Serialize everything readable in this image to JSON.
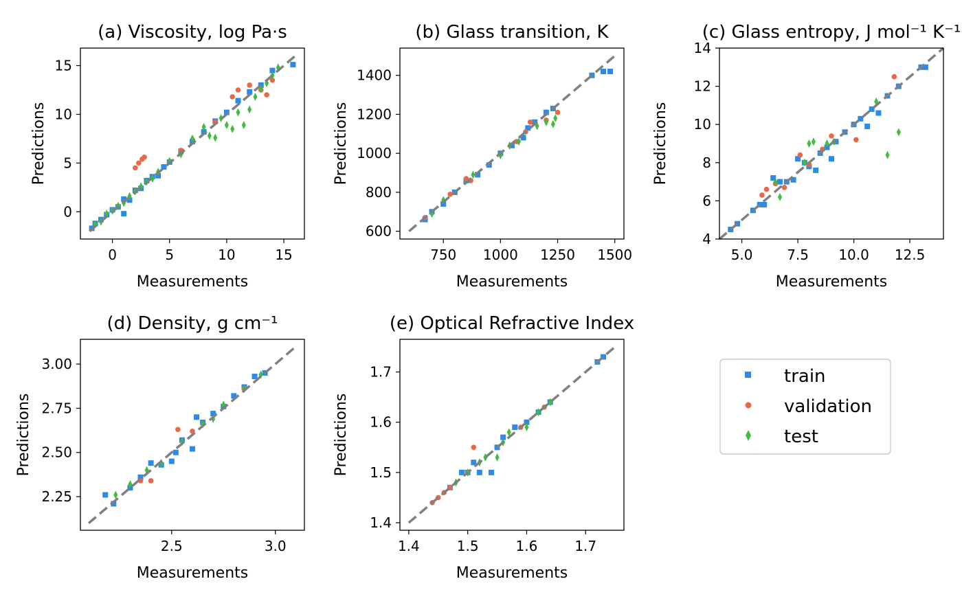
{
  "chart_data": [
    {
      "type": "scatter",
      "title": "(a) Viscosity, log Pa·s",
      "xlabel": "Measurements",
      "ylabel": "Predictions",
      "xlim": [
        -2.8,
        16.8
      ],
      "ylim": [
        -2.8,
        16.8
      ],
      "xticks": [
        0,
        5,
        10,
        15
      ],
      "yticks": [
        0,
        5,
        10,
        15
      ],
      "ytick_labels": [
        "0",
        "5",
        "10",
        "15"
      ],
      "diagonal": [
        -2,
        16
      ],
      "series": [
        {
          "name": "train",
          "points": [
            [
              -1.8,
              -1.7
            ],
            [
              -1.5,
              -1.2
            ],
            [
              -1,
              -0.8
            ],
            [
              -0.5,
              -0.3
            ],
            [
              0,
              0.2
            ],
            [
              0.5,
              0.5
            ],
            [
              1,
              1.3
            ],
            [
              1,
              -0.2
            ],
            [
              1.5,
              1.2
            ],
            [
              2,
              2.2
            ],
            [
              2.5,
              2.4
            ],
            [
              3,
              3.2
            ],
            [
              3.5,
              3.6
            ],
            [
              4,
              3.7
            ],
            [
              4.5,
              4.6
            ],
            [
              5,
              5.1
            ],
            [
              6,
              6.2
            ],
            [
              7,
              7.2
            ],
            [
              8,
              8.2
            ],
            [
              9,
              9.3
            ],
            [
              10,
              10.2
            ],
            [
              11,
              11.4
            ],
            [
              12,
              12.3
            ],
            [
              13,
              13
            ],
            [
              14,
              14.5
            ],
            [
              15.8,
              15.1
            ]
          ]
        },
        {
          "name": "validation",
          "points": [
            [
              2,
              4.5
            ],
            [
              2.3,
              5
            ],
            [
              2.6,
              5.4
            ],
            [
              2.8,
              5.6
            ],
            [
              6,
              6.3
            ],
            [
              9,
              9.2
            ],
            [
              10.5,
              11.8
            ],
            [
              11,
              12.5
            ],
            [
              12,
              13
            ],
            [
              13,
              12.5
            ],
            [
              13.5,
              12
            ],
            [
              14,
              13.5
            ]
          ]
        },
        {
          "name": "test",
          "points": [
            [
              -1.5,
              -1.3
            ],
            [
              -1,
              -1
            ],
            [
              -0.5,
              -0.2
            ],
            [
              0,
              0.1
            ],
            [
              0.5,
              0.6
            ],
            [
              1,
              0.9
            ],
            [
              1.5,
              1.6
            ],
            [
              2,
              2.1
            ],
            [
              2.5,
              2.6
            ],
            [
              3,
              3.1
            ],
            [
              3.5,
              3.4
            ],
            [
              4,
              4.1
            ],
            [
              5,
              5.2
            ],
            [
              6,
              5.9
            ],
            [
              7,
              7.5
            ],
            [
              8,
              8.7
            ],
            [
              8.5,
              7.8
            ],
            [
              9,
              7.6
            ],
            [
              9.5,
              9.6
            ],
            [
              10,
              8.9
            ],
            [
              10.5,
              8.5
            ],
            [
              11,
              10.2
            ],
            [
              11.5,
              8.9
            ],
            [
              12,
              10.5
            ],
            [
              12.5,
              11.8
            ],
            [
              13,
              12.6
            ],
            [
              13.5,
              13.2
            ],
            [
              14,
              14
            ],
            [
              14.5,
              14.8
            ]
          ]
        }
      ]
    },
    {
      "type": "scatter",
      "title": "(b) Glass transition, K",
      "xlabel": "Measurements",
      "ylabel": "Predictions",
      "xlim": [
        560,
        1540
      ],
      "ylim": [
        560,
        1540
      ],
      "xticks": [
        750,
        1000,
        1250,
        1500
      ],
      "yticks": [
        600,
        800,
        1000,
        1200,
        1400
      ],
      "ytick_labels": [
        "600",
        "800",
        "1000",
        "1200",
        "1400"
      ],
      "diagonal": [
        600,
        1500
      ],
      "series": [
        {
          "name": "train",
          "points": [
            [
              670,
              660
            ],
            [
              700,
              700
            ],
            [
              750,
              740
            ],
            [
              800,
              800
            ],
            [
              850,
              860
            ],
            [
              900,
              890
            ],
            [
              950,
              940
            ],
            [
              1000,
              1000
            ],
            [
              1050,
              1040
            ],
            [
              1100,
              1080
            ],
            [
              1120,
              1130
            ],
            [
              1150,
              1160
            ],
            [
              1200,
              1210
            ],
            [
              1230,
              1230
            ],
            [
              1400,
              1400
            ],
            [
              1450,
              1420
            ],
            [
              1480,
              1420
            ]
          ]
        },
        {
          "name": "validation",
          "points": [
            [
              670,
              670
            ],
            [
              780,
              790
            ],
            [
              850,
              870
            ],
            [
              870,
              860
            ],
            [
              1070,
              1060
            ],
            [
              1110,
              1110
            ],
            [
              1130,
              1160
            ],
            [
              1200,
              1170
            ],
            [
              1250,
              1210
            ]
          ]
        },
        {
          "name": "test",
          "points": [
            [
              700,
              690
            ],
            [
              750,
              760
            ],
            [
              880,
              890
            ],
            [
              1000,
              990
            ],
            [
              1040,
              1040
            ],
            [
              1080,
              1060
            ],
            [
              1160,
              1140
            ],
            [
              1200,
              1160
            ],
            [
              1230,
              1150
            ],
            [
              1240,
              1180
            ]
          ]
        }
      ]
    },
    {
      "type": "scatter",
      "title": "(c) Glass entropy, J mol⁻¹ K⁻¹",
      "xlabel": "Measurements",
      "ylabel": "Predictions",
      "xlim": [
        4,
        14
      ],
      "ylim": [
        4,
        14
      ],
      "xticks": [
        5,
        7.5,
        10,
        12.5
      ],
      "xtick_labels": [
        "5.0",
        "7.5",
        "10.0",
        "12.5"
      ],
      "yticks": [
        4,
        6,
        8,
        10,
        12,
        14
      ],
      "ytick_labels": [
        "4",
        "6",
        "8",
        "10",
        "12",
        "14"
      ],
      "diagonal": [
        4,
        14
      ],
      "series": [
        {
          "name": "train",
          "points": [
            [
              4.5,
              4.5
            ],
            [
              4.8,
              4.8
            ],
            [
              5.5,
              5.5
            ],
            [
              5.8,
              5.8
            ],
            [
              6,
              5.8
            ],
            [
              6.4,
              7.2
            ],
            [
              6.7,
              7
            ],
            [
              7,
              7
            ],
            [
              7.3,
              7.1
            ],
            [
              7.5,
              8.2
            ],
            [
              7.8,
              8
            ],
            [
              8,
              7.8
            ],
            [
              8.3,
              7.6
            ],
            [
              8.5,
              8.5
            ],
            [
              8.8,
              8.8
            ],
            [
              9,
              8.2
            ],
            [
              9.2,
              9.1
            ],
            [
              9.6,
              9.6
            ],
            [
              10,
              10
            ],
            [
              10.3,
              10.3
            ],
            [
              10.6,
              9.9
            ],
            [
              10.8,
              10.8
            ],
            [
              11.1,
              10.6
            ],
            [
              11.5,
              11.5
            ],
            [
              12,
              12
            ],
            [
              13,
              13
            ],
            [
              13.2,
              13
            ]
          ]
        },
        {
          "name": "validation",
          "points": [
            [
              5.9,
              6.3
            ],
            [
              6.1,
              6.6
            ],
            [
              6.5,
              6.9
            ],
            [
              6.9,
              6.7
            ],
            [
              7.6,
              8.4
            ],
            [
              8,
              7.9
            ],
            [
              8.6,
              8.7
            ],
            [
              9,
              9.4
            ],
            [
              10.1,
              9.2
            ],
            [
              11.8,
              12.5
            ]
          ]
        },
        {
          "name": "test",
          "points": [
            [
              6.5,
              7
            ],
            [
              6.7,
              6.2
            ],
            [
              7.8,
              8
            ],
            [
              8,
              9
            ],
            [
              8.2,
              9.1
            ],
            [
              8.8,
              9
            ],
            [
              9.1,
              9.1
            ],
            [
              11,
              11.2
            ],
            [
              11.5,
              8.4
            ],
            [
              12,
              9.6
            ]
          ]
        }
      ]
    },
    {
      "type": "scatter",
      "title": "(d) Density, g cm⁻¹",
      "xlabel": "Measurements",
      "ylabel": "Predictions",
      "xlim": [
        2.06,
        3.14
      ],
      "ylim": [
        2.06,
        3.14
      ],
      "xticks": [
        2.5,
        3.0
      ],
      "xtick_labels": [
        "2.5",
        "3.0"
      ],
      "yticks": [
        2.25,
        2.5,
        2.75,
        3.0
      ],
      "ytick_labels": [
        "2.25",
        "2.50",
        "2.75",
        "3.00"
      ],
      "diagonal": [
        2.1,
        3.1
      ],
      "series": [
        {
          "name": "train",
          "points": [
            [
              2.18,
              2.26
            ],
            [
              2.22,
              2.21
            ],
            [
              2.3,
              2.3
            ],
            [
              2.35,
              2.36
            ],
            [
              2.4,
              2.44
            ],
            [
              2.45,
              2.43
            ],
            [
              2.5,
              2.45
            ],
            [
              2.52,
              2.5
            ],
            [
              2.55,
              2.57
            ],
            [
              2.6,
              2.52
            ],
            [
              2.62,
              2.7
            ],
            [
              2.65,
              2.67
            ],
            [
              2.7,
              2.72
            ],
            [
              2.75,
              2.76
            ],
            [
              2.8,
              2.82
            ],
            [
              2.85,
              2.87
            ],
            [
              2.9,
              2.93
            ],
            [
              2.95,
              2.95
            ]
          ]
        },
        {
          "name": "validation",
          "points": [
            [
              2.35,
              2.34
            ],
            [
              2.4,
              2.34
            ],
            [
              2.53,
              2.63
            ],
            [
              2.6,
              2.62
            ],
            [
              2.85,
              2.86
            ]
          ]
        },
        {
          "name": "test",
          "points": [
            [
              2.23,
              2.26
            ],
            [
              2.3,
              2.32
            ],
            [
              2.38,
              2.4
            ],
            [
              2.45,
              2.44
            ],
            [
              2.55,
              2.56
            ],
            [
              2.65,
              2.66
            ],
            [
              2.7,
              2.69
            ],
            [
              2.75,
              2.77
            ],
            [
              2.85,
              2.86
            ],
            [
              2.93,
              2.94
            ]
          ]
        }
      ]
    },
    {
      "type": "scatter",
      "title": "(e) Optical Refractive Index",
      "xlabel": "Measurements",
      "ylabel": "Predictions",
      "xlim": [
        1.385,
        1.765
      ],
      "ylim": [
        1.385,
        1.765
      ],
      "xticks": [
        1.4,
        1.5,
        1.6,
        1.7
      ],
      "xtick_labels": [
        "1.4",
        "1.5",
        "1.6",
        "1.7"
      ],
      "yticks": [
        1.4,
        1.5,
        1.6,
        1.7
      ],
      "ytick_labels": [
        "1.4",
        "1.5",
        "1.6",
        "1.7"
      ],
      "diagonal": [
        1.4,
        1.75
      ],
      "series": [
        {
          "name": "train",
          "points": [
            [
              1.47,
              1.47
            ],
            [
              1.49,
              1.5
            ],
            [
              1.5,
              1.5
            ],
            [
              1.51,
              1.52
            ],
            [
              1.52,
              1.5
            ],
            [
              1.54,
              1.5
            ],
            [
              1.55,
              1.55
            ],
            [
              1.56,
              1.57
            ],
            [
              1.58,
              1.59
            ],
            [
              1.6,
              1.6
            ],
            [
              1.62,
              1.62
            ],
            [
              1.64,
              1.64
            ],
            [
              1.72,
              1.72
            ],
            [
              1.73,
              1.73
            ]
          ]
        },
        {
          "name": "validation",
          "points": [
            [
              1.44,
              1.44
            ],
            [
              1.45,
              1.45
            ],
            [
              1.46,
              1.46
            ],
            [
              1.47,
              1.47
            ],
            [
              1.51,
              1.55
            ],
            [
              1.59,
              1.59
            ],
            [
              1.63,
              1.63
            ]
          ]
        },
        {
          "name": "test",
          "points": [
            [
              1.48,
              1.48
            ],
            [
              1.5,
              1.5
            ],
            [
              1.52,
              1.52
            ],
            [
              1.53,
              1.53
            ],
            [
              1.55,
              1.53
            ],
            [
              1.56,
              1.56
            ],
            [
              1.57,
              1.58
            ],
            [
              1.6,
              1.59
            ],
            [
              1.62,
              1.62
            ],
            [
              1.64,
              1.64
            ]
          ]
        }
      ]
    }
  ],
  "legend": {
    "placement": "lower-right-empty-slot",
    "entries": [
      {
        "label": "train",
        "marker": "square",
        "color": "#2b8be6"
      },
      {
        "label": "validation",
        "marker": "circle",
        "color": "#e8684a"
      },
      {
        "label": "test",
        "marker": "diamond",
        "color": "#3dbf3d"
      }
    ]
  },
  "colors": {
    "train": "#2b8be6",
    "validation": "#e8684a",
    "test": "#3dbf3d",
    "diagonal": "#808080"
  }
}
